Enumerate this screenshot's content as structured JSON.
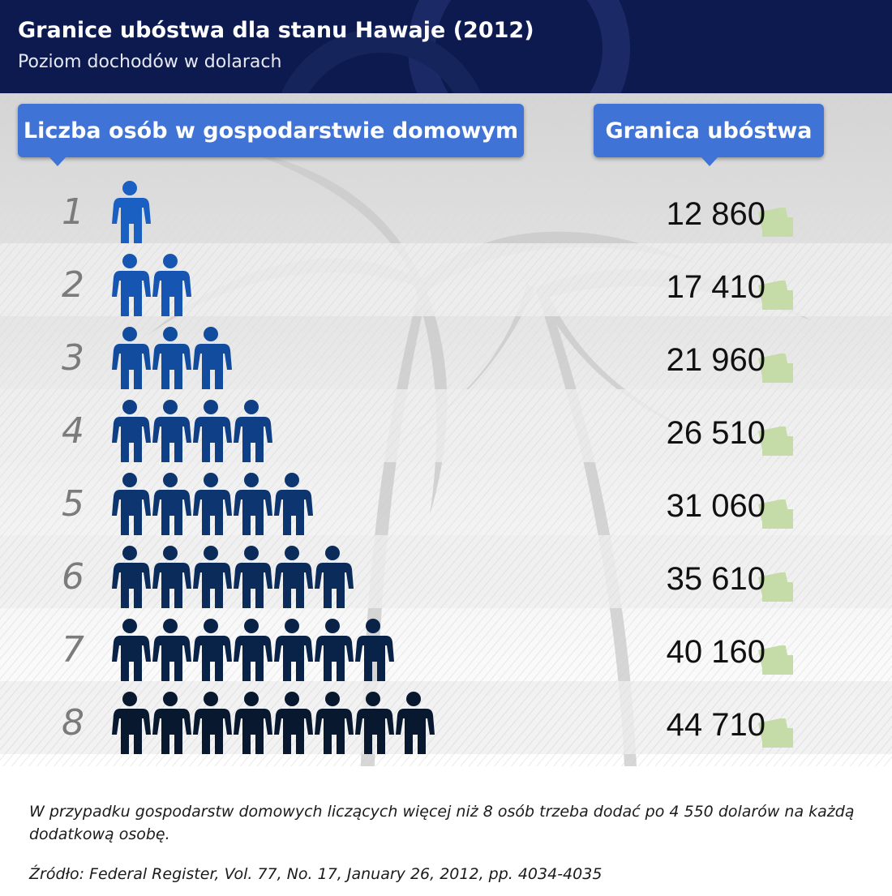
{
  "header": {
    "title": "Granice ubóstwa dla stanu Hawaje (2012)",
    "subtitle": "Poziom dochodów w dolarach"
  },
  "columns": {
    "household_label": "Liczba osób w gospodarstwie domowym",
    "threshold_label": "Granica ubóstwa"
  },
  "footer": {
    "note": "W przypadku gospodarstw domowych liczących więcej niż 8 osób trzeba dodać po 4 550 dolarów na każdą dodatkową osobę.",
    "source": "Źródło:  Federal Register, Vol. 77, No. 17, January 26, 2012, pp. 4034-4035"
  },
  "colors": {
    "header_bg": "#0d1a4f",
    "pill_bg": "#3f74d6",
    "person_colors": [
      "#1a5fc2",
      "#1656b2",
      "#114c9f",
      "#0f3f86",
      "#0d356f",
      "#0b2b5b",
      "#092247",
      "#07182f"
    ],
    "bill_color": "#c5dba8"
  },
  "chart_data": {
    "type": "table",
    "title": "Granice ubóstwa dla stanu Hawaje (2012)",
    "subtitle": "Poziom dochodów w dolarach",
    "columns": [
      "Liczba osób w gospodarstwie domowym",
      "Granica ubóstwa"
    ],
    "rows": [
      {
        "people": 1,
        "label": "1",
        "value": 12860,
        "value_text": "12 860"
      },
      {
        "people": 2,
        "label": "2",
        "value": 17410,
        "value_text": "17 410"
      },
      {
        "people": 3,
        "label": "3",
        "value": 21960,
        "value_text": "21 960"
      },
      {
        "people": 4,
        "label": "4",
        "value": 26510,
        "value_text": "26 510"
      },
      {
        "people": 5,
        "label": "5",
        "value": 31060,
        "value_text": "31 060"
      },
      {
        "people": 6,
        "label": "6",
        "value": 35610,
        "value_text": "35 610"
      },
      {
        "people": 7,
        "label": "7",
        "value": 40160,
        "value_text": "40 160"
      },
      {
        "people": 8,
        "label": "8",
        "value": 44710,
        "value_text": "44 710"
      }
    ]
  }
}
